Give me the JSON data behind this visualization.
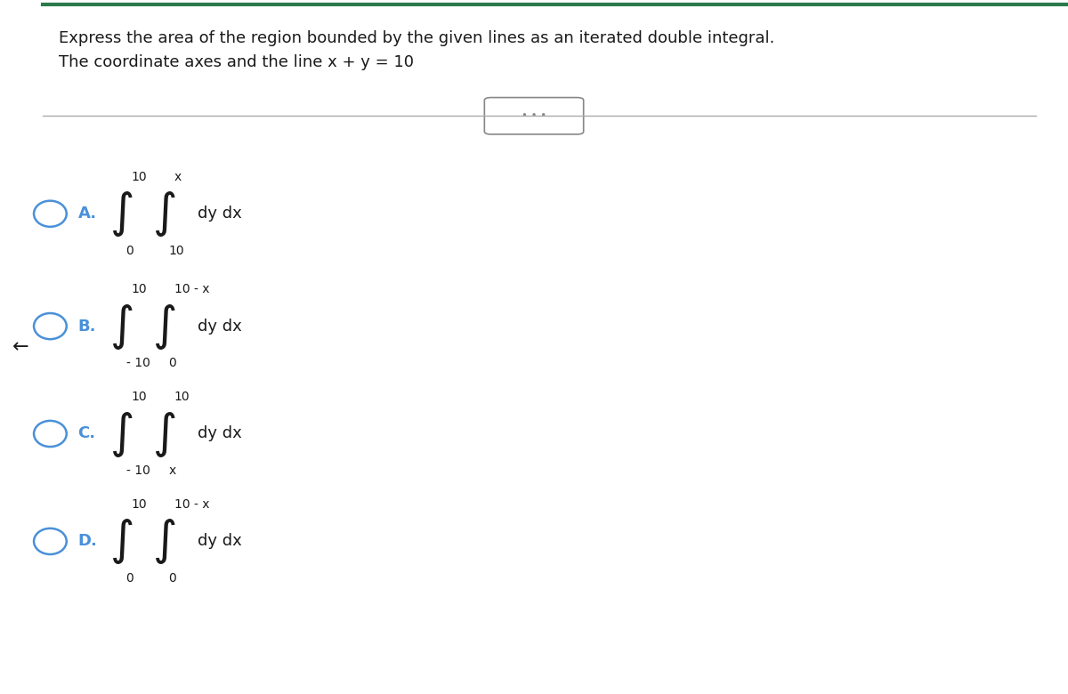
{
  "title_line1": "Express the area of the region bounded by the given lines as an iterated double integral.",
  "title_line2": "The coordinate axes and the line x + y = 10",
  "bg_color": "#ffffff",
  "border_color": "#2a7a4a",
  "text_color": "#1a1a1a",
  "circle_color": "#4a90d9",
  "option_label_color": "#4a90d9",
  "separator_color": "#aaaaaa",
  "dots_color": "#888888",
  "options": [
    {
      "label": "A.",
      "upper_outer": "10",
      "upper_inner": "x",
      "lower_outer": "0",
      "lower_inner": "10",
      "suffix": "dy dx"
    },
    {
      "label": "B.",
      "upper_outer": "10",
      "upper_inner": "10 - x",
      "lower_outer": "- 10",
      "lower_inner": "0",
      "suffix": "dy dx"
    },
    {
      "label": "C.",
      "upper_outer": "10",
      "upper_inner": "10",
      "lower_outer": "- 10",
      "lower_inner": "x",
      "suffix": "dy dx"
    },
    {
      "label": "D.",
      "upper_outer": "10",
      "upper_inner": "10 - x",
      "lower_outer": "0",
      "lower_inner": "0",
      "suffix": "dy dx"
    }
  ]
}
